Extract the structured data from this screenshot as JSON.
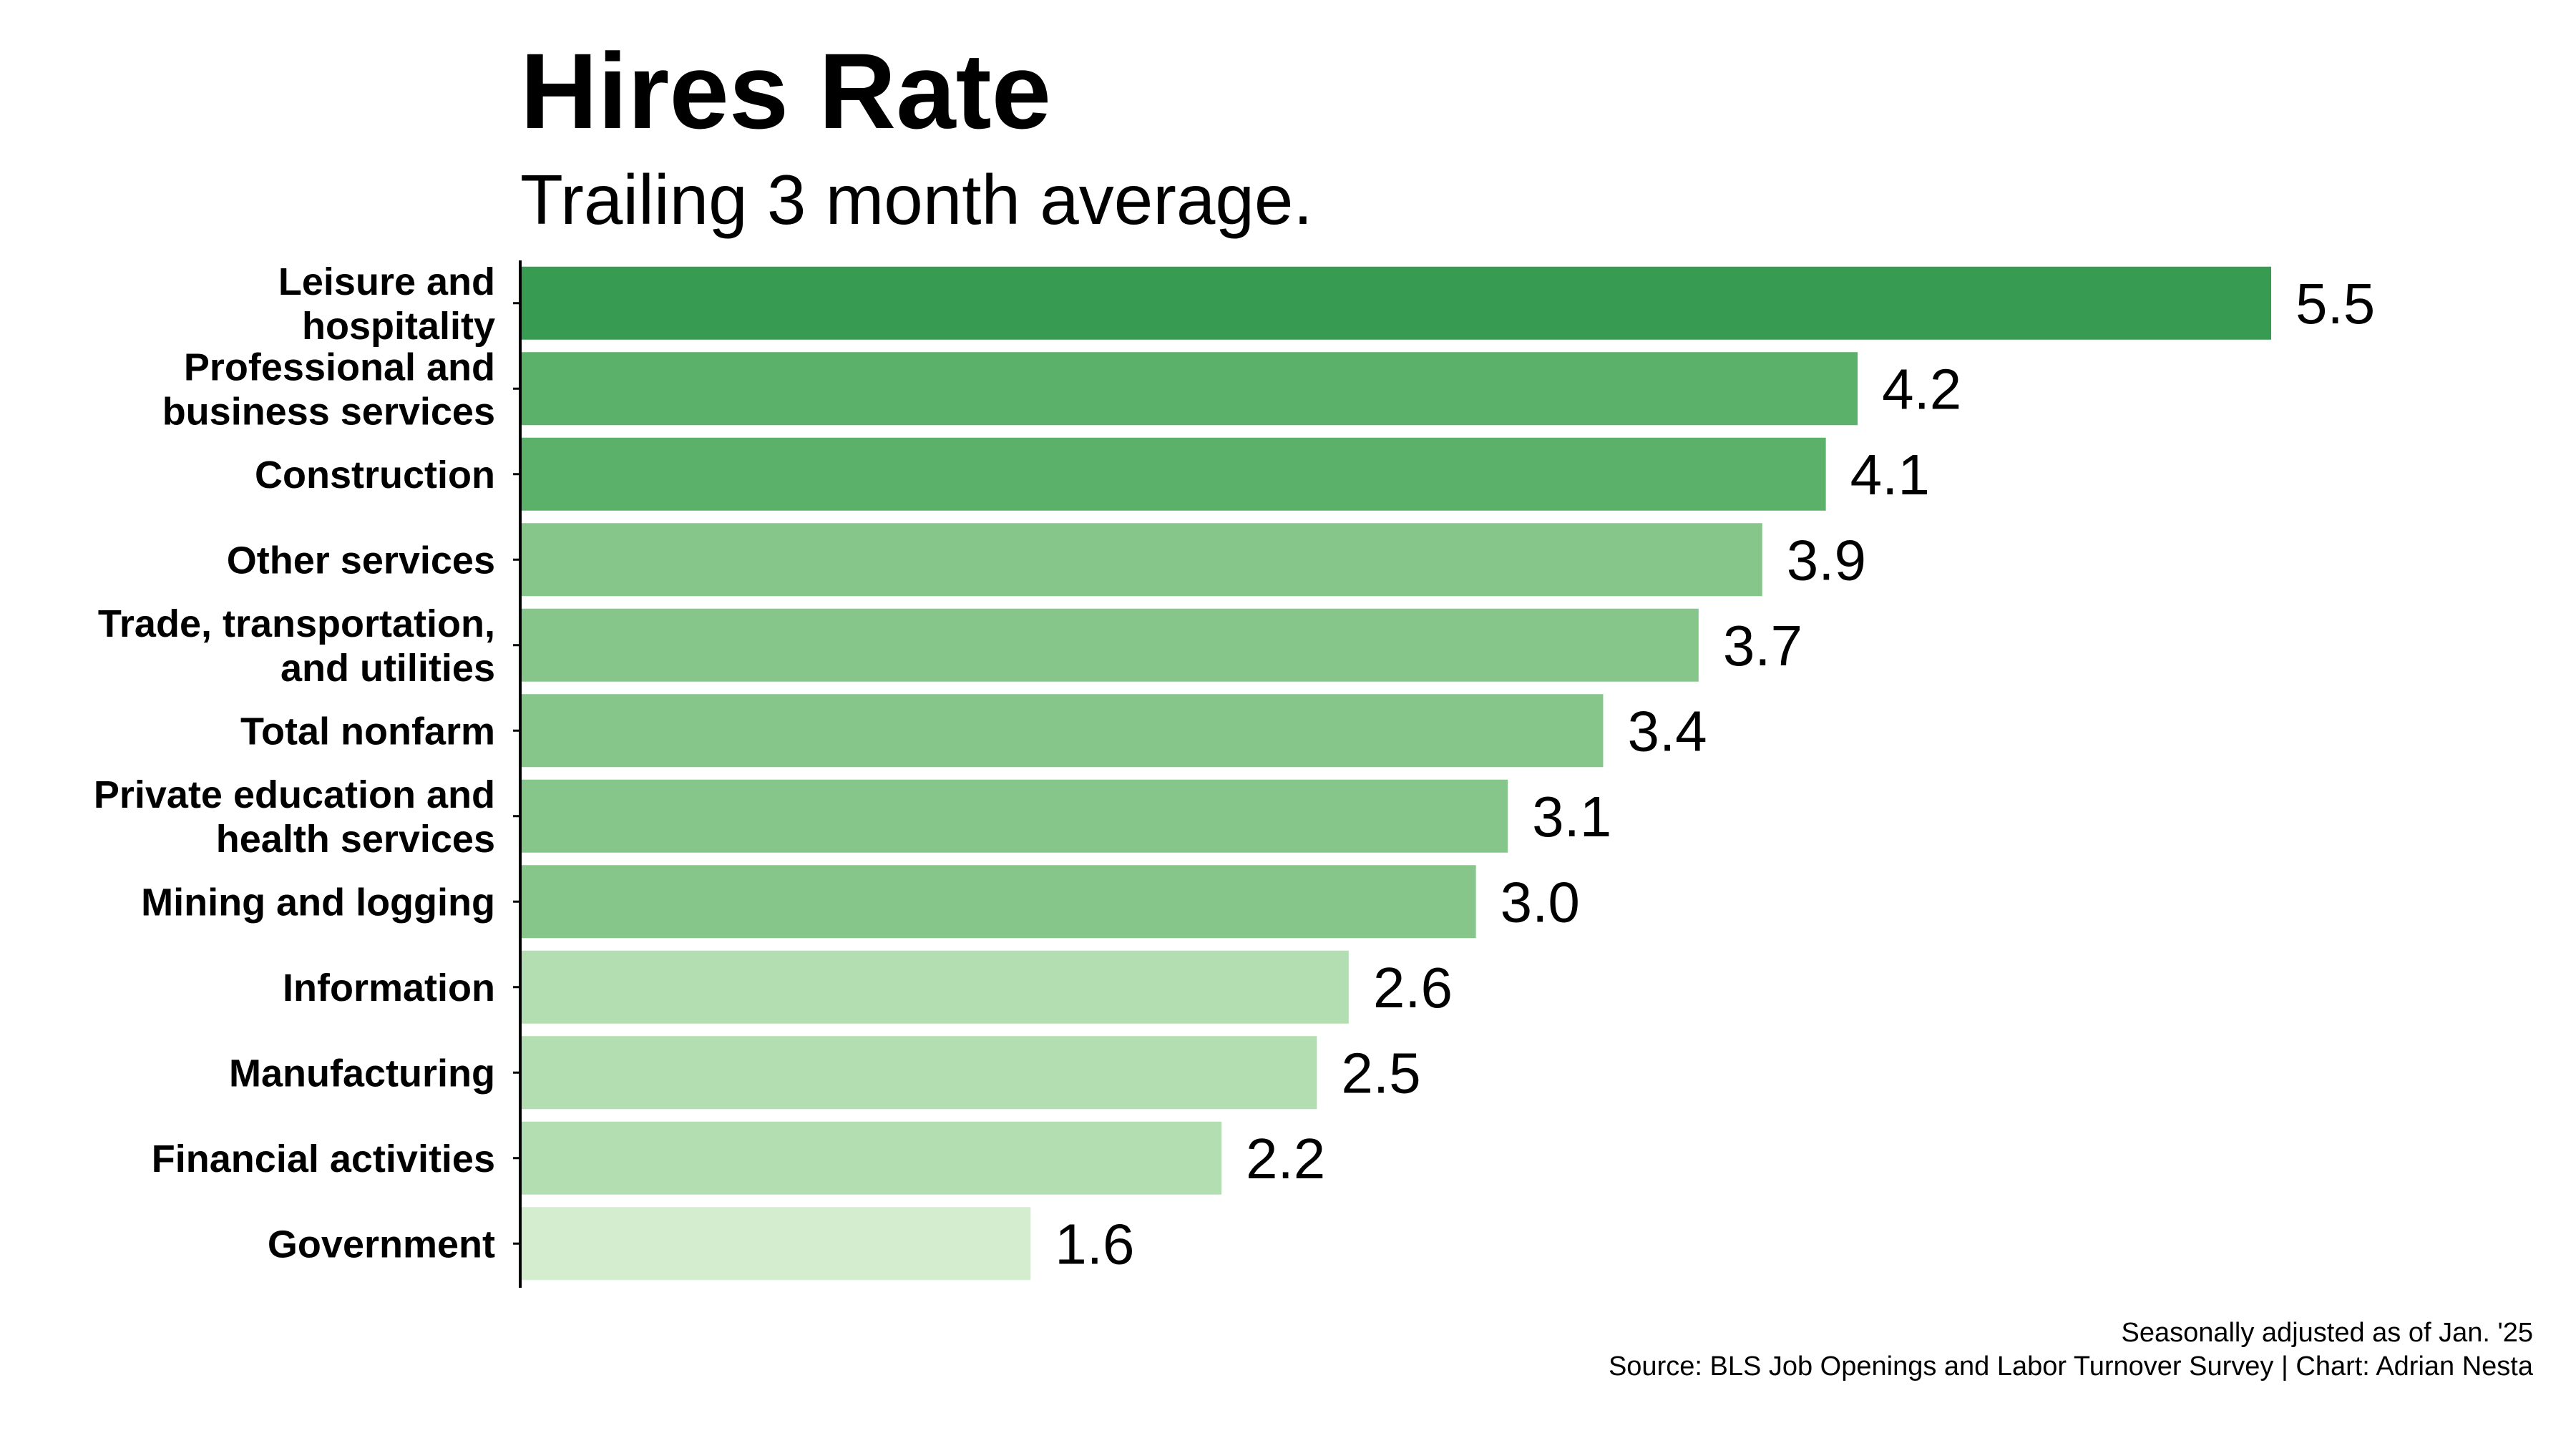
{
  "chart_data": {
    "type": "bar",
    "orientation": "horizontal",
    "title": "Hires Rate",
    "subtitle": "Trailing 3 month average.",
    "categories": [
      "Leisure and hospitality",
      "Professional and business services",
      "Construction",
      "Other services",
      "Trade, transportation, and utilities",
      "Total nonfarm",
      "Private education and health services",
      "Mining and logging",
      "Information",
      "Manufacturing",
      "Financial activities",
      "Government"
    ],
    "category_label_lines": [
      [
        "Leisure and",
        "hospitality"
      ],
      [
        "Professional and",
        "business services"
      ],
      [
        "Construction"
      ],
      [
        "Other services"
      ],
      [
        "Trade, transportation,",
        "and utilities"
      ],
      [
        "Total nonfarm"
      ],
      [
        "Private education and",
        "health services"
      ],
      [
        "Mining and logging"
      ],
      [
        "Information"
      ],
      [
        "Manufacturing"
      ],
      [
        "Financial activities"
      ],
      [
        "Government"
      ]
    ],
    "values": [
      5.5,
      4.2,
      4.1,
      3.9,
      3.7,
      3.4,
      3.1,
      3.0,
      2.6,
      2.5,
      2.2,
      1.6
    ],
    "value_labels": [
      "5.5",
      "4.2",
      "4.1",
      "3.9",
      "3.7",
      "3.4",
      "3.1",
      "3.0",
      "2.6",
      "2.5",
      "2.2",
      "1.6"
    ],
    "bar_colors": [
      "#379c51",
      "#5bb06a",
      "#5bb06a",
      "#86c68b",
      "#86c68b",
      "#86c68b",
      "#86c68b",
      "#86c68b",
      "#b3deb1",
      "#b3deb1",
      "#b3deb1",
      "#d4edcf"
    ],
    "xlim": [
      0,
      5.5
    ],
    "xlabel": "",
    "ylabel": "",
    "grid": false,
    "legend": "none"
  },
  "caption": {
    "line1": "Seasonally adjusted as of Jan. '25",
    "line2": "Source: BLS Job Openings and Labor Turnover Survey | Chart: Adrian Nesta"
  }
}
